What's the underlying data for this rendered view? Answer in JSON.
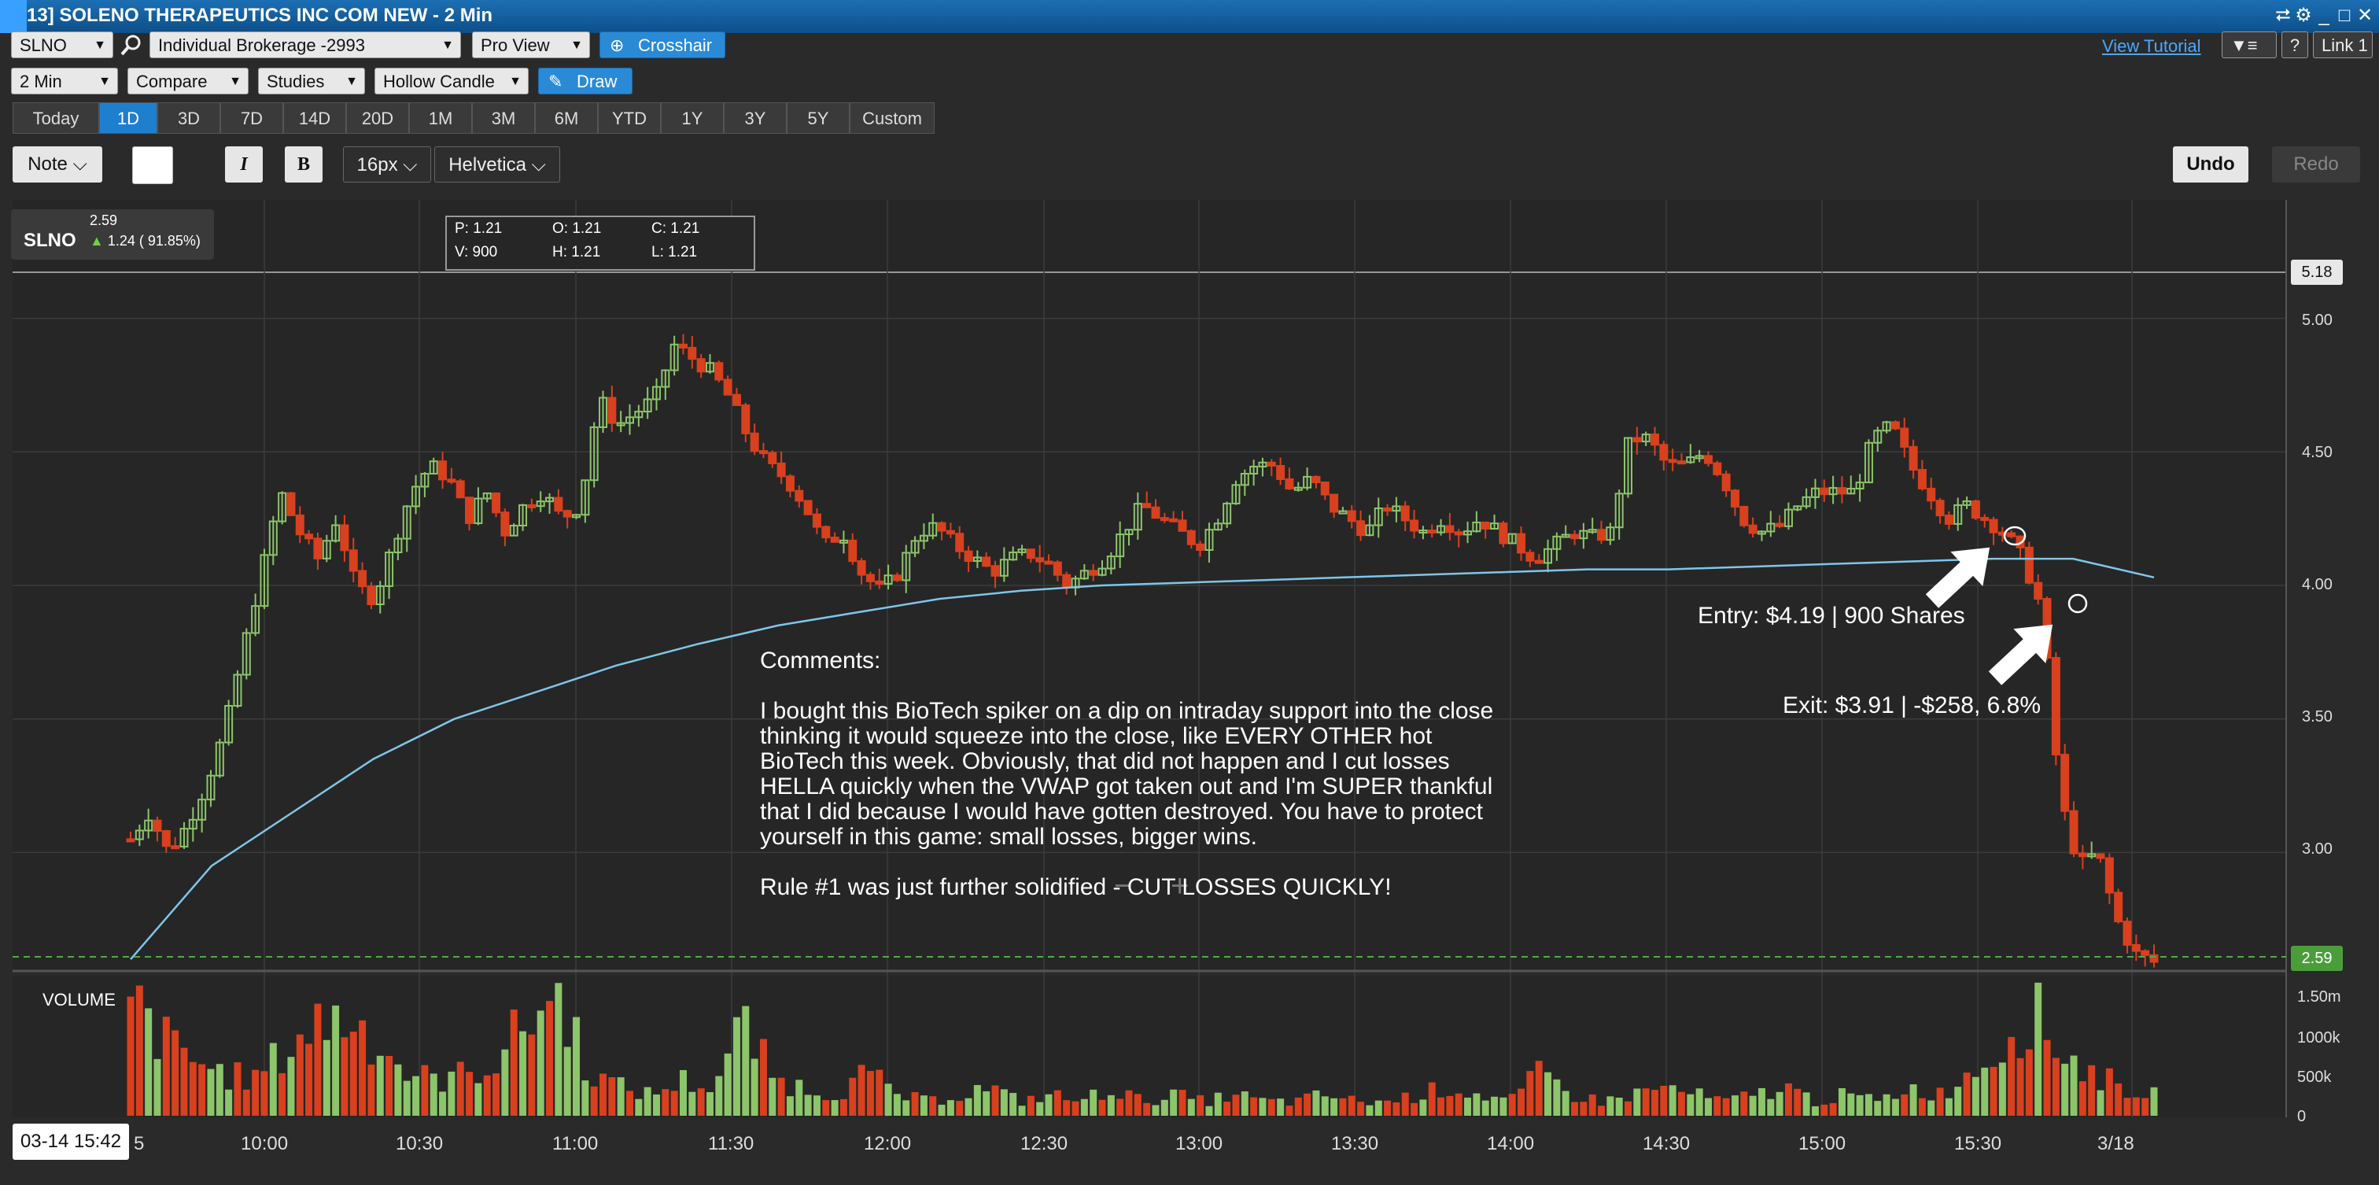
{
  "window": {
    "title": "13] SOLENO THERAPEUTICS INC COM NEW - 2 Min",
    "controls": [
      "⮂",
      "⚙",
      "_",
      "□",
      "✕"
    ]
  },
  "toolbar": {
    "symbol": "SLNO",
    "account": "Individual Brokerage -2993",
    "view": "Pro View",
    "crosshair": "Crosshair",
    "view_tutorial": "View Tutorial",
    "help": "?",
    "link": "Link 1"
  },
  "toolbar2": {
    "interval": "2 Min",
    "compare": "Compare",
    "studies": "Studies",
    "candle": "Hollow Candle",
    "draw": "Draw"
  },
  "ranges": [
    "Today",
    "1D",
    "3D",
    "7D",
    "14D",
    "20D",
    "1M",
    "3M",
    "6M",
    "YTD",
    "1Y",
    "3Y",
    "5Y",
    "Custom"
  ],
  "active_range": "1D",
  "format": {
    "note": "Note",
    "italic": "I",
    "bold": "B",
    "size": "16px",
    "font": "Helvetica",
    "undo": "Undo",
    "redo": "Redo"
  },
  "quote": {
    "symbol": "SLNO",
    "price": "2.59",
    "change": "1.24 ( 91.85%)"
  },
  "ohlc": {
    "p": "P: 1.21",
    "o": "O: 1.21",
    "c": "C: 1.21",
    "v": "V: 900",
    "h": "H: 1.21",
    "l": "L: 1.21"
  },
  "price_axis": {
    "ticks": [
      "5.00",
      "4.50",
      "4.00",
      "3.50",
      "3.00"
    ],
    "high_marker": "5.18",
    "last_marker": "2.59"
  },
  "volume_axis": {
    "label": "VOLUME",
    "ticks": [
      "1.50m",
      "1000k",
      "500k",
      "0"
    ]
  },
  "time_axis": {
    "cursor_label": "03-14 15:42",
    "cursor_suffix": "5",
    "ticks": [
      "10:00",
      "10:30",
      "11:00",
      "11:30",
      "12:00",
      "12:30",
      "13:00",
      "13:30",
      "14:00",
      "14:30",
      "15:00",
      "15:30",
      "3/18"
    ]
  },
  "zoom": {
    "minus": "−",
    "plus": "+"
  },
  "comments": {
    "heading": "Comments:",
    "body": "I bought this BioTech spiker on a dip on intraday support into the close thinking it would squeeze into the close, like EVERY OTHER hot BioTech this week. Obviously, that did not happen and I cut losses HELLA quickly when the VWAP got taken out and I'm SUPER thankful that I did because I would have gotten destroyed. You have to protect yourself in this game: small losses, bigger wins.",
    "rule": "Rule #1 was just further solidified - CUT LOSSES QUICKLY!"
  },
  "annotations": {
    "entry": "Entry: $4.19 | 900 Shares",
    "exit": "Exit: $3.91 | -$258, 6.8%"
  },
  "colors": {
    "up": "#8cc56a",
    "down": "#d9401e",
    "vwap": "#7fc6e8",
    "accent": "#1f7fcf"
  },
  "chart_data": {
    "type": "candlestick",
    "price_range": [
      2.55,
      5.18
    ],
    "close_path": [
      3.05,
      3.15,
      3.0,
      3.1,
      3.25,
      3.45,
      3.75,
      4.05,
      4.35,
      4.2,
      4.1,
      4.25,
      4.0,
      3.95,
      4.15,
      4.35,
      4.45,
      4.4,
      4.25,
      4.35,
      4.2,
      4.3,
      4.35,
      4.25,
      4.3,
      4.7,
      4.6,
      4.65,
      4.7,
      4.9,
      4.85,
      4.8,
      4.7,
      4.55,
      4.45,
      4.4,
      4.3,
      4.15,
      4.2,
      4.05,
      3.98,
      4.05,
      4.2,
      4.22,
      4.15,
      4.1,
      4.05,
      4.1,
      4.12,
      4.08,
      4.0,
      4.05,
      4.1,
      4.2,
      4.3,
      4.25,
      4.2,
      4.15,
      4.25,
      4.4,
      4.45,
      4.45,
      4.35,
      4.4,
      4.3,
      4.25,
      4.2,
      4.3,
      4.25,
      4.2,
      4.25,
      4.2,
      4.25,
      4.2,
      4.15,
      4.1,
      4.15,
      4.2,
      4.18,
      4.2,
      4.55,
      4.55,
      4.45,
      4.45,
      4.5,
      4.4,
      4.25,
      4.2,
      4.22,
      4.3,
      4.35,
      4.35,
      4.35,
      4.55,
      4.6,
      4.45,
      4.35,
      4.25,
      4.3,
      4.25,
      4.2,
      4.1,
      3.91,
      3.2,
      2.95,
      3.0,
      2.75,
      2.62,
      2.59
    ],
    "vwap_path": [
      2.6,
      2.95,
      3.15,
      3.35,
      3.5,
      3.6,
      3.7,
      3.78,
      3.85,
      3.9,
      3.95,
      3.98,
      4.0,
      4.01,
      4.02,
      4.03,
      4.04,
      4.05,
      4.06,
      4.06,
      4.07,
      4.08,
      4.09,
      4.1,
      4.1,
      4.03
    ],
    "volume_path": [
      1.6,
      1.1,
      0.8,
      0.6,
      0.5,
      0.9,
      1.3,
      1.4,
      1.1,
      0.6,
      0.5,
      0.6,
      0.8,
      1.4,
      1.7,
      0.6,
      0.4,
      0.3,
      0.5,
      0.4,
      1.3,
      0.5,
      0.4,
      0.3,
      0.6,
      0.3,
      0.2,
      0.3,
      0.4,
      0.2,
      0.3,
      0.2,
      0.4,
      0.2,
      0.3,
      0.2,
      0.3,
      0.2,
      0.2,
      0.3,
      0.2,
      0.2,
      0.3,
      0.4,
      0.3,
      0.2,
      0.6,
      0.3,
      0.2,
      0.3,
      0.4,
      0.3,
      0.2,
      0.3,
      0.4,
      0.2,
      0.3,
      0.2,
      0.4,
      0.3,
      0.6,
      1.0,
      1.5,
      0.9,
      0.6,
      0.4,
      0.3
    ]
  }
}
